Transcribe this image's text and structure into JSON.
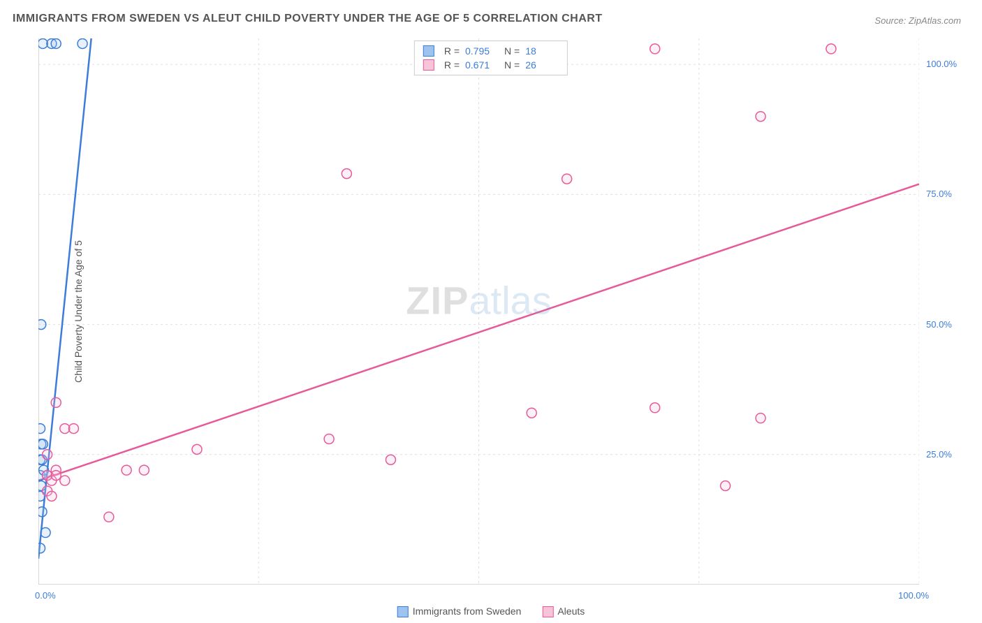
{
  "title": "IMMIGRANTS FROM SWEDEN VS ALEUT CHILD POVERTY UNDER THE AGE OF 5 CORRELATION CHART",
  "source_label": "Source:",
  "source_name": "ZipAtlas.com",
  "y_axis_label": "Child Poverty Under the Age of 5",
  "watermark_a": "ZIP",
  "watermark_b": "atlas",
  "chart": {
    "type": "scatter",
    "xlim": [
      0,
      100
    ],
    "ylim": [
      0,
      105
    ],
    "x_ticks": [
      0,
      100
    ],
    "x_tick_labels": [
      "0.0%",
      "100.0%"
    ],
    "y_ticks": [
      25,
      50,
      75,
      100
    ],
    "y_tick_labels": [
      "25.0%",
      "50.0%",
      "75.0%",
      "100.0%"
    ],
    "grid_color": "#e0e0e0",
    "axis_color": "#cccccc",
    "background_color": "#ffffff",
    "marker_radius": 7,
    "marker_stroke_width": 1.5,
    "marker_fill_opacity": 0.25,
    "line_width": 2.5,
    "series": [
      {
        "key": "sweden",
        "label": "Immigrants from Sweden",
        "color_stroke": "#3b7dd8",
        "color_fill": "#9ec3ef",
        "R": "0.795",
        "N": "18",
        "trend": {
          "x1": 0,
          "y1": 5,
          "x2": 6,
          "y2": 105
        },
        "points": [
          [
            0.5,
            104
          ],
          [
            1.5,
            104
          ],
          [
            2,
            104
          ],
          [
            5,
            104
          ],
          [
            0.3,
            50
          ],
          [
            0.2,
            30
          ],
          [
            0.3,
            27
          ],
          [
            0.5,
            27
          ],
          [
            0.2,
            24
          ],
          [
            0.4,
            24
          ],
          [
            0.2,
            21
          ],
          [
            0.6,
            22
          ],
          [
            1,
            21
          ],
          [
            0.3,
            19
          ],
          [
            0.2,
            17
          ],
          [
            0.4,
            14
          ],
          [
            0.8,
            10
          ],
          [
            0.2,
            7
          ]
        ]
      },
      {
        "key": "aleuts",
        "label": "Aleuts",
        "color_stroke": "#e75a9a",
        "color_fill": "#f7c4da",
        "R": "0.671",
        "N": "26",
        "trend": {
          "x1": 0,
          "y1": 20,
          "x2": 100,
          "y2": 77
        },
        "points": [
          [
            70,
            103
          ],
          [
            90,
            103
          ],
          [
            82,
            90
          ],
          [
            35,
            79
          ],
          [
            60,
            78
          ],
          [
            2,
            35
          ],
          [
            56,
            33
          ],
          [
            70,
            34
          ],
          [
            82,
            32
          ],
          [
            3,
            30
          ],
          [
            4,
            30
          ],
          [
            33,
            28
          ],
          [
            18,
            26
          ],
          [
            1,
            25
          ],
          [
            40,
            24
          ],
          [
            10,
            22
          ],
          [
            12,
            22
          ],
          [
            2,
            22
          ],
          [
            1,
            21
          ],
          [
            1.5,
            20
          ],
          [
            2,
            21
          ],
          [
            3,
            20
          ],
          [
            78,
            19
          ],
          [
            1,
            18
          ],
          [
            1.5,
            17
          ],
          [
            8,
            13
          ]
        ]
      }
    ]
  },
  "top_legend": {
    "R_label": "R =",
    "N_label": "N ="
  }
}
